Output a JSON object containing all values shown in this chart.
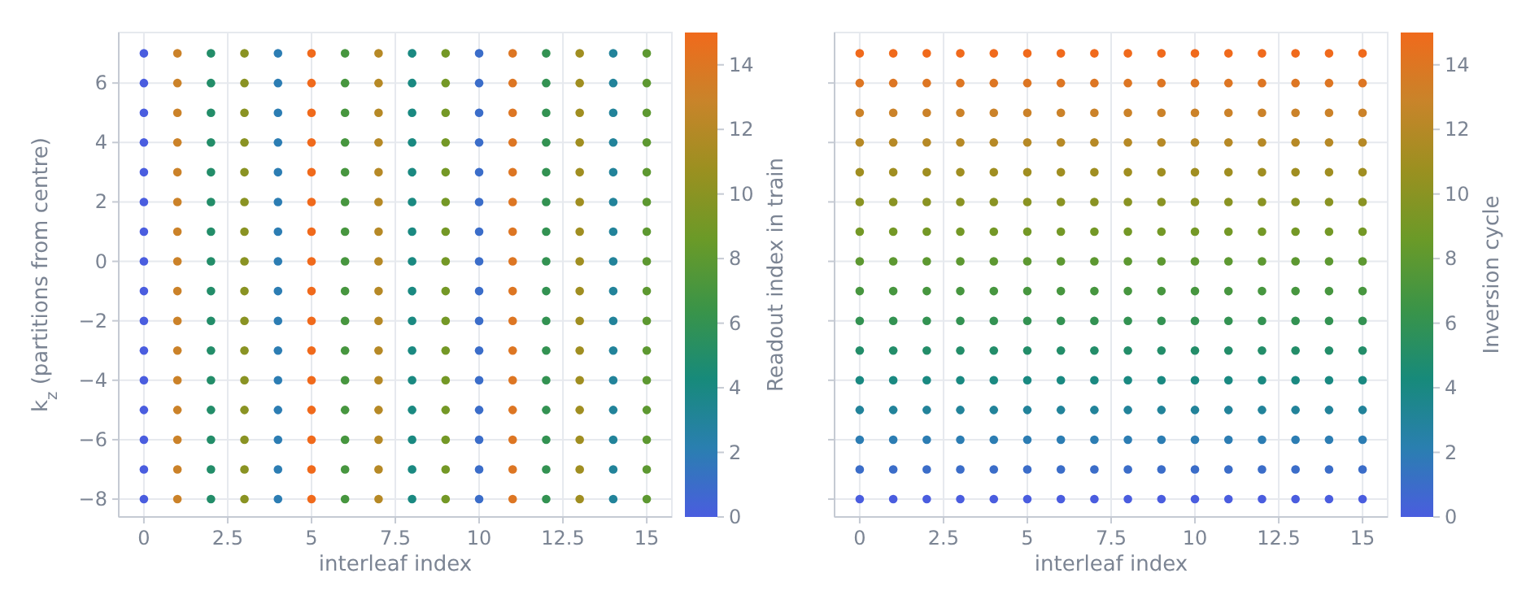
{
  "chart_data": [
    {
      "type": "scatter",
      "xlabel": "interleaf index",
      "ylabel": "k$_{z}$ (partitions from centre)",
      "clabel": "Readout index in train",
      "xlim": [
        -0.75,
        15.75
      ],
      "ylim": [
        -8.6,
        7.7
      ],
      "xticks": [
        0,
        2.5,
        5,
        7.5,
        10,
        12.5,
        15
      ],
      "yticks": [
        -8,
        -6,
        -4,
        -2,
        0,
        2,
        4,
        6
      ],
      "clim": [
        0,
        15
      ],
      "cticks": [
        0,
        2,
        4,
        6,
        8,
        10,
        12,
        14
      ],
      "grid": true,
      "marker": "circle",
      "series": [
        {
          "x": [
            0,
            1,
            2,
            3,
            4,
            5,
            6,
            7,
            8,
            9,
            10,
            11,
            12,
            13,
            14,
            15,
            0,
            1,
            2,
            3,
            4,
            5,
            6,
            7,
            8,
            9,
            10,
            11,
            12,
            13,
            14,
            15,
            0,
            1,
            2,
            3,
            4,
            5,
            6,
            7,
            8,
            9,
            10,
            11,
            12,
            13,
            14,
            15,
            0,
            1,
            2,
            3,
            4,
            5,
            6,
            7,
            8,
            9,
            10,
            11,
            12,
            13,
            14,
            15,
            0,
            1,
            2,
            3,
            4,
            5,
            6,
            7,
            8,
            9,
            10,
            11,
            12,
            13,
            14,
            15,
            0,
            1,
            2,
            3,
            4,
            5,
            6,
            7,
            8,
            9,
            10,
            11,
            12,
            13,
            14,
            15,
            0,
            1,
            2,
            3,
            4,
            5,
            6,
            7,
            8,
            9,
            10,
            11,
            12,
            13,
            14,
            15,
            0,
            1,
            2,
            3,
            4,
            5,
            6,
            7,
            8,
            9,
            10,
            11,
            12,
            13,
            14,
            15,
            0,
            1,
            2,
            3,
            4,
            5,
            6,
            7,
            8,
            9,
            10,
            11,
            12,
            13,
            14,
            15,
            0,
            1,
            2,
            3,
            4,
            5,
            6,
            7,
            8,
            9,
            10,
            11,
            12,
            13,
            14,
            15,
            0,
            1,
            2,
            3,
            4,
            5,
            6,
            7,
            8,
            9,
            10,
            11,
            12,
            13,
            14,
            15,
            0,
            1,
            2,
            3,
            4,
            5,
            6,
            7,
            8,
            9,
            10,
            11,
            12,
            13,
            14,
            15,
            0,
            1,
            2,
            3,
            4,
            5,
            6,
            7,
            8,
            9,
            10,
            11,
            12,
            13,
            14,
            15,
            0,
            1,
            2,
            3,
            4,
            5,
            6,
            7,
            8,
            9,
            10,
            11,
            12,
            13,
            14,
            15,
            0,
            1,
            2,
            3,
            4,
            5,
            6,
            7,
            8,
            9,
            10,
            11,
            12,
            13,
            14,
            15,
            0,
            1,
            2,
            3,
            4,
            5,
            6,
            7,
            8,
            9,
            10,
            11,
            12,
            13,
            14,
            15
          ],
          "values": [
            -8,
            -8,
            -8,
            -8,
            -8,
            -8,
            -8,
            -8,
            -8,
            -8,
            -8,
            -8,
            -8,
            -8,
            -8,
            -8,
            -7,
            -7,
            -7,
            -7,
            -7,
            -7,
            -7,
            -7,
            -7,
            -7,
            -7,
            -7,
            -7,
            -7,
            -7,
            -7,
            -6,
            -6,
            -6,
            -6,
            -6,
            -6,
            -6,
            -6,
            -6,
            -6,
            -6,
            -6,
            -6,
            -6,
            -6,
            -6,
            -5,
            -5,
            -5,
            -5,
            -5,
            -5,
            -5,
            -5,
            -5,
            -5,
            -5,
            -5,
            -5,
            -5,
            -5,
            -5,
            -4,
            -4,
            -4,
            -4,
            -4,
            -4,
            -4,
            -4,
            -4,
            -4,
            -4,
            -4,
            -4,
            -4,
            -4,
            -4,
            -3,
            -3,
            -3,
            -3,
            -3,
            -3,
            -3,
            -3,
            -3,
            -3,
            -3,
            -3,
            -3,
            -3,
            -3,
            -3,
            -2,
            -2,
            -2,
            -2,
            -2,
            -2,
            -2,
            -2,
            -2,
            -2,
            -2,
            -2,
            -2,
            -2,
            -2,
            -2,
            -1,
            -1,
            -1,
            -1,
            -1,
            -1,
            -1,
            -1,
            -1,
            -1,
            -1,
            -1,
            -1,
            -1,
            -1,
            -1,
            0,
            0,
            0,
            0,
            0,
            0,
            0,
            0,
            0,
            0,
            0,
            0,
            0,
            0,
            0,
            0,
            1,
            1,
            1,
            1,
            1,
            1,
            1,
            1,
            1,
            1,
            1,
            1,
            1,
            1,
            1,
            1,
            2,
            2,
            2,
            2,
            2,
            2,
            2,
            2,
            2,
            2,
            2,
            2,
            2,
            2,
            2,
            2,
            3,
            3,
            3,
            3,
            3,
            3,
            3,
            3,
            3,
            3,
            3,
            3,
            3,
            3,
            3,
            3,
            4,
            4,
            4,
            4,
            4,
            4,
            4,
            4,
            4,
            4,
            4,
            4,
            4,
            4,
            4,
            4,
            5,
            5,
            5,
            5,
            5,
            5,
            5,
            5,
            5,
            5,
            5,
            5,
            5,
            5,
            5,
            5,
            6,
            6,
            6,
            6,
            6,
            6,
            6,
            6,
            6,
            6,
            6,
            6,
            6,
            6,
            6,
            6,
            7,
            7,
            7,
            7,
            7,
            7,
            7,
            7,
            7,
            7,
            7,
            7,
            7,
            7,
            7,
            7
          ],
          "cvalues": [
            0,
            13,
            5,
            10,
            2,
            15,
            7,
            12,
            4,
            9,
            1,
            14,
            6,
            11,
            3,
            8,
            0,
            13,
            5,
            10,
            2,
            15,
            7,
            12,
            4,
            9,
            1,
            14,
            6,
            11,
            3,
            8,
            0,
            13,
            5,
            10,
            2,
            15,
            7,
            12,
            4,
            9,
            1,
            14,
            6,
            11,
            3,
            8,
            0,
            13,
            5,
            10,
            2,
            15,
            7,
            12,
            4,
            9,
            1,
            14,
            6,
            11,
            3,
            8,
            0,
            13,
            5,
            10,
            2,
            15,
            7,
            12,
            4,
            9,
            1,
            14,
            6,
            11,
            3,
            8,
            0,
            13,
            5,
            10,
            2,
            15,
            7,
            12,
            4,
            9,
            1,
            14,
            6,
            11,
            3,
            8,
            0,
            13,
            5,
            10,
            2,
            15,
            7,
            12,
            4,
            9,
            1,
            14,
            6,
            11,
            3,
            8,
            0,
            13,
            5,
            10,
            2,
            15,
            7,
            12,
            4,
            9,
            1,
            14,
            6,
            11,
            3,
            8,
            0,
            13,
            5,
            10,
            2,
            15,
            7,
            12,
            4,
            9,
            1,
            14,
            6,
            11,
            3,
            8,
            0,
            13,
            5,
            10,
            2,
            15,
            7,
            12,
            4,
            9,
            1,
            14,
            6,
            11,
            3,
            8,
            0,
            13,
            5,
            10,
            2,
            15,
            7,
            12,
            4,
            9,
            1,
            14,
            6,
            11,
            3,
            8,
            0,
            13,
            5,
            10,
            2,
            15,
            7,
            12,
            4,
            9,
            1,
            14,
            6,
            11,
            3,
            8,
            0,
            13,
            5,
            10,
            2,
            15,
            7,
            12,
            4,
            9,
            1,
            14,
            6,
            11,
            3,
            8,
            0,
            13,
            5,
            10,
            2,
            15,
            7,
            12,
            4,
            9,
            1,
            14,
            6,
            11,
            3,
            8,
            0,
            13,
            5,
            10,
            2,
            15,
            7,
            12,
            4,
            9,
            1,
            14,
            6,
            11,
            3,
            8,
            0,
            13,
            5,
            10,
            2,
            15,
            7,
            12,
            4,
            9,
            1,
            14,
            6,
            11,
            3,
            8
          ]
        }
      ]
    },
    {
      "type": "scatter",
      "xlabel": "interleaf index",
      "clabel": "Inversion cycle",
      "xlim": [
        -0.75,
        15.75
      ],
      "ylim": [
        -8.6,
        7.7
      ],
      "xticks": [
        0,
        2.5,
        5,
        7.5,
        10,
        12.5,
        15
      ],
      "yticks": [
        -8,
        -6,
        -4,
        -2,
        0,
        2,
        4,
        6
      ],
      "clim": [
        0,
        15
      ],
      "cticks": [
        0,
        2,
        4,
        6,
        8,
        10,
        12,
        14
      ],
      "grid": true,
      "marker": "circle",
      "tick_labels": "x",
      "series": [
        {
          "x": [
            0,
            1,
            2,
            3,
            4,
            5,
            6,
            7,
            8,
            9,
            10,
            11,
            12,
            13,
            14,
            15,
            0,
            1,
            2,
            3,
            4,
            5,
            6,
            7,
            8,
            9,
            10,
            11,
            12,
            13,
            14,
            15,
            0,
            1,
            2,
            3,
            4,
            5,
            6,
            7,
            8,
            9,
            10,
            11,
            12,
            13,
            14,
            15,
            0,
            1,
            2,
            3,
            4,
            5,
            6,
            7,
            8,
            9,
            10,
            11,
            12,
            13,
            14,
            15,
            0,
            1,
            2,
            3,
            4,
            5,
            6,
            7,
            8,
            9,
            10,
            11,
            12,
            13,
            14,
            15,
            0,
            1,
            2,
            3,
            4,
            5,
            6,
            7,
            8,
            9,
            10,
            11,
            12,
            13,
            14,
            15,
            0,
            1,
            2,
            3,
            4,
            5,
            6,
            7,
            8,
            9,
            10,
            11,
            12,
            13,
            14,
            15,
            0,
            1,
            2,
            3,
            4,
            5,
            6,
            7,
            8,
            9,
            10,
            11,
            12,
            13,
            14,
            15,
            0,
            1,
            2,
            3,
            4,
            5,
            6,
            7,
            8,
            9,
            10,
            11,
            12,
            13,
            14,
            15,
            0,
            1,
            2,
            3,
            4,
            5,
            6,
            7,
            8,
            9,
            10,
            11,
            12,
            13,
            14,
            15,
            0,
            1,
            2,
            3,
            4,
            5,
            6,
            7,
            8,
            9,
            10,
            11,
            12,
            13,
            14,
            15,
            0,
            1,
            2,
            3,
            4,
            5,
            6,
            7,
            8,
            9,
            10,
            11,
            12,
            13,
            14,
            15,
            0,
            1,
            2,
            3,
            4,
            5,
            6,
            7,
            8,
            9,
            10,
            11,
            12,
            13,
            14,
            15,
            0,
            1,
            2,
            3,
            4,
            5,
            6,
            7,
            8,
            9,
            10,
            11,
            12,
            13,
            14,
            15,
            0,
            1,
            2,
            3,
            4,
            5,
            6,
            7,
            8,
            9,
            10,
            11,
            12,
            13,
            14,
            15,
            0,
            1,
            2,
            3,
            4,
            5,
            6,
            7,
            8,
            9,
            10,
            11,
            12,
            13,
            14,
            15
          ],
          "values": [
            -8,
            -8,
            -8,
            -8,
            -8,
            -8,
            -8,
            -8,
            -8,
            -8,
            -8,
            -8,
            -8,
            -8,
            -8,
            -8,
            -7,
            -7,
            -7,
            -7,
            -7,
            -7,
            -7,
            -7,
            -7,
            -7,
            -7,
            -7,
            -7,
            -7,
            -7,
            -7,
            -6,
            -6,
            -6,
            -6,
            -6,
            -6,
            -6,
            -6,
            -6,
            -6,
            -6,
            -6,
            -6,
            -6,
            -6,
            -6,
            -5,
            -5,
            -5,
            -5,
            -5,
            -5,
            -5,
            -5,
            -5,
            -5,
            -5,
            -5,
            -5,
            -5,
            -5,
            -5,
            -4,
            -4,
            -4,
            -4,
            -4,
            -4,
            -4,
            -4,
            -4,
            -4,
            -4,
            -4,
            -4,
            -4,
            -4,
            -4,
            -3,
            -3,
            -3,
            -3,
            -3,
            -3,
            -3,
            -3,
            -3,
            -3,
            -3,
            -3,
            -3,
            -3,
            -3,
            -3,
            -2,
            -2,
            -2,
            -2,
            -2,
            -2,
            -2,
            -2,
            -2,
            -2,
            -2,
            -2,
            -2,
            -2,
            -2,
            -2,
            -1,
            -1,
            -1,
            -1,
            -1,
            -1,
            -1,
            -1,
            -1,
            -1,
            -1,
            -1,
            -1,
            -1,
            -1,
            -1,
            0,
            0,
            0,
            0,
            0,
            0,
            0,
            0,
            0,
            0,
            0,
            0,
            0,
            0,
            0,
            0,
            1,
            1,
            1,
            1,
            1,
            1,
            1,
            1,
            1,
            1,
            1,
            1,
            1,
            1,
            1,
            1,
            2,
            2,
            2,
            2,
            2,
            2,
            2,
            2,
            2,
            2,
            2,
            2,
            2,
            2,
            2,
            2,
            3,
            3,
            3,
            3,
            3,
            3,
            3,
            3,
            3,
            3,
            3,
            3,
            3,
            3,
            3,
            3,
            4,
            4,
            4,
            4,
            4,
            4,
            4,
            4,
            4,
            4,
            4,
            4,
            4,
            4,
            4,
            4,
            5,
            5,
            5,
            5,
            5,
            5,
            5,
            5,
            5,
            5,
            5,
            5,
            5,
            5,
            5,
            5,
            6,
            6,
            6,
            6,
            6,
            6,
            6,
            6,
            6,
            6,
            6,
            6,
            6,
            6,
            6,
            6,
            7,
            7,
            7,
            7,
            7,
            7,
            7,
            7,
            7,
            7,
            7,
            7,
            7,
            7,
            7,
            7
          ],
          "cvalues": [
            0,
            0,
            0,
            0,
            0,
            0,
            0,
            0,
            0,
            0,
            0,
            0,
            0,
            0,
            0,
            0,
            1,
            1,
            1,
            1,
            1,
            1,
            1,
            1,
            1,
            1,
            1,
            1,
            1,
            1,
            1,
            1,
            2,
            2,
            2,
            2,
            2,
            2,
            2,
            2,
            2,
            2,
            2,
            2,
            2,
            2,
            2,
            2,
            3,
            3,
            3,
            3,
            3,
            3,
            3,
            3,
            3,
            3,
            3,
            3,
            3,
            3,
            3,
            3,
            4,
            4,
            4,
            4,
            4,
            4,
            4,
            4,
            4,
            4,
            4,
            4,
            4,
            4,
            4,
            4,
            5,
            5,
            5,
            5,
            5,
            5,
            5,
            5,
            5,
            5,
            5,
            5,
            5,
            5,
            5,
            5,
            6,
            6,
            6,
            6,
            6,
            6,
            6,
            6,
            6,
            6,
            6,
            6,
            6,
            6,
            6,
            6,
            7,
            7,
            7,
            7,
            7,
            7,
            7,
            7,
            7,
            7,
            7,
            7,
            7,
            7,
            7,
            7,
            8,
            8,
            8,
            8,
            8,
            8,
            8,
            8,
            8,
            8,
            8,
            8,
            8,
            8,
            8,
            8,
            9,
            9,
            9,
            9,
            9,
            9,
            9,
            9,
            9,
            9,
            9,
            9,
            9,
            9,
            9,
            9,
            10,
            10,
            10,
            10,
            10,
            10,
            10,
            10,
            10,
            10,
            10,
            10,
            10,
            10,
            10,
            10,
            11,
            11,
            11,
            11,
            11,
            11,
            11,
            11,
            11,
            11,
            11,
            11,
            11,
            11,
            11,
            11,
            12,
            12,
            12,
            12,
            12,
            12,
            12,
            12,
            12,
            12,
            12,
            12,
            12,
            12,
            12,
            12,
            13,
            13,
            13,
            13,
            13,
            13,
            13,
            13,
            13,
            13,
            13,
            13,
            13,
            13,
            13,
            13,
            14,
            14,
            14,
            14,
            14,
            14,
            14,
            14,
            14,
            14,
            14,
            14,
            14,
            14,
            14,
            14,
            15,
            15,
            15,
            15,
            15,
            15,
            15,
            15,
            15,
            15,
            15,
            15,
            15,
            15,
            15,
            15
          ]
        }
      ]
    }
  ]
}
